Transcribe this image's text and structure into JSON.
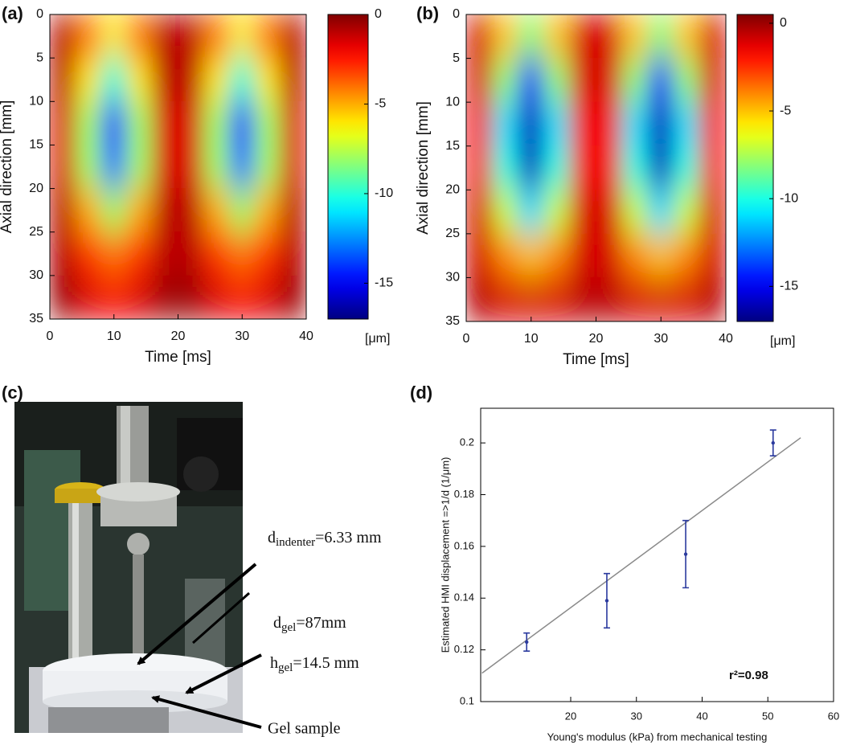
{
  "chart_data": [
    {
      "type": "heatmap",
      "panel_label": "(a)",
      "x_label": "Time [ms]",
      "y_label": "Axial direction [mm]",
      "x": [
        2,
        6,
        10,
        14,
        18,
        22,
        26,
        30,
        34,
        38
      ],
      "y": [
        2.5,
        7.5,
        12.5,
        17.5,
        22.5,
        27.5,
        32.5
      ],
      "z": [
        [
          -1,
          -4,
          -6,
          -4,
          -1,
          -1,
          -4,
          -6,
          -4,
          -1
        ],
        [
          -1,
          -6,
          -10,
          -6,
          -1,
          -1,
          -6,
          -10,
          -6,
          -1
        ],
        [
          -1.5,
          -8,
          -14,
          -8,
          -1.5,
          -1.5,
          -8,
          -14,
          -8,
          -1.5
        ],
        [
          -1.5,
          -8,
          -13,
          -8,
          -1.5,
          -1.5,
          -8,
          -13,
          -8,
          -1.5
        ],
        [
          -1,
          -5,
          -8,
          -5,
          -1,
          -1,
          -5,
          -8,
          -5,
          -1
        ],
        [
          -1,
          -3,
          -4,
          -3,
          -1,
          -1,
          -3,
          -4,
          -3,
          -1
        ],
        [
          -0.5,
          -1.5,
          -2,
          -1.5,
          -0.5,
          -0.5,
          -1.5,
          -2,
          -1.5,
          -0.5
        ]
      ],
      "xlim": [
        0,
        40
      ],
      "xticks": [
        0,
        10,
        20,
        30,
        40
      ],
      "ylim": [
        0,
        35
      ],
      "y_reversed": true,
      "yticks": [
        0,
        5,
        10,
        15,
        20,
        25,
        30,
        35
      ],
      "colormap": "jet",
      "zlim": [
        -17,
        0
      ],
      "zticks": [
        0,
        -5,
        -10,
        -15
      ],
      "colorbar_label": "[μm]"
    },
    {
      "type": "heatmap",
      "panel_label": "(b)",
      "x_label": "Time [ms]",
      "y_label": "Axial direction [mm]",
      "x": [
        2,
        6,
        10,
        14,
        18,
        22,
        26,
        30,
        34,
        38
      ],
      "y": [
        2.5,
        7.5,
        12.5,
        17.5,
        22.5,
        27.5,
        32.5
      ],
      "z": [
        [
          -1,
          -5,
          -8,
          -5,
          -1,
          -1,
          -5,
          -8,
          -5,
          -1
        ],
        [
          -1,
          -8,
          -14,
          -8,
          -1,
          -1,
          -8,
          -14,
          -8,
          -1
        ],
        [
          -1.5,
          -11,
          -16,
          -11,
          -1.5,
          -1.5,
          -11,
          -16,
          -11,
          -1.5
        ],
        [
          -1.5,
          -10,
          -16,
          -10,
          -1.5,
          -1.5,
          -10,
          -16,
          -10,
          -1.5
        ],
        [
          -1,
          -7,
          -11,
          -7,
          -1,
          -1,
          -7,
          -11,
          -7,
          -1
        ],
        [
          -1,
          -4,
          -5,
          -4,
          -1,
          -1,
          -4,
          -5,
          -4,
          -1
        ],
        [
          -0.5,
          -1,
          -1,
          -1,
          -0.5,
          -0.5,
          -1,
          -1,
          -1,
          -0.5
        ]
      ],
      "xlim": [
        0,
        40
      ],
      "xticks": [
        0,
        10,
        20,
        30,
        40
      ],
      "ylim": [
        0,
        35
      ],
      "y_reversed": true,
      "yticks": [
        0,
        5,
        10,
        15,
        20,
        25,
        30,
        35
      ],
      "colormap": "jet",
      "zlim": [
        -17,
        0.5
      ],
      "zticks": [
        0,
        -5,
        -10,
        -15
      ],
      "colorbar_label": "[μm]"
    },
    {
      "type": "errorbar",
      "panel_label": "(d)",
      "x_label": "Young's modulus (kPa) from mechanical testing",
      "y_label": "Estimated HMI displacement =>1/d (1/μm)",
      "x": [
        13.3,
        25.5,
        37.5,
        50.8
      ],
      "values": [
        0.123,
        0.139,
        0.157,
        0.2
      ],
      "errors": [
        0.0035,
        0.0105,
        0.013,
        0.005
      ],
      "color": "#2b3a9e",
      "fit": {
        "x": [
          6.5,
          55
        ],
        "y": [
          0.111,
          0.202
        ],
        "color": "#8a8a8a"
      },
      "annotation": "r²=0.98",
      "xlim": [
        6.3,
        60
      ],
      "xticks": [
        20,
        30,
        40,
        50,
        60
      ],
      "ylim": [
        0.1,
        0.2134
      ],
      "yticks": [
        0.1,
        0.12,
        0.14,
        0.16,
        0.18,
        0.2
      ]
    }
  ],
  "photo_panel": {
    "panel_label": "(c)",
    "annotations": [
      {
        "main": "d",
        "sub": "indenter",
        "rest": "=6.33 mm"
      },
      {
        "main": "d",
        "sub": "gel",
        "rest": "=87mm"
      },
      {
        "main": "h",
        "sub": "gel",
        "rest": "=14.5 mm"
      },
      {
        "main": "Gel sample"
      }
    ]
  }
}
